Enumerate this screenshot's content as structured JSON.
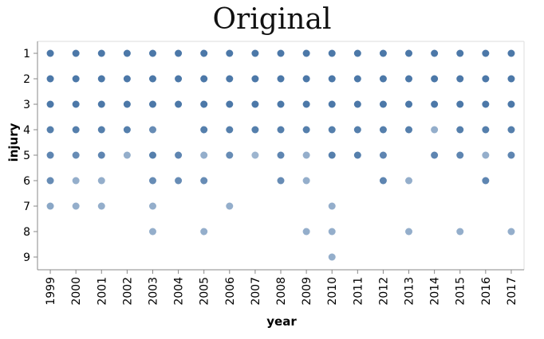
{
  "title": "Original",
  "chart_data": {
    "type": "scatter",
    "xlabel": "year",
    "ylabel": "injury",
    "x": [
      1999,
      2000,
      2001,
      2002,
      2003,
      2004,
      2005,
      2006,
      2007,
      2008,
      2009,
      2010,
      2011,
      2012,
      2013,
      2014,
      2015,
      2016,
      2017
    ],
    "y_ticks": [
      1,
      2,
      3,
      4,
      5,
      6,
      7,
      8,
      9
    ],
    "grid": false,
    "point_color": "#4c78a8",
    "points": [
      {
        "x": 1999,
        "y": 1,
        "opacity": 1
      },
      {
        "x": 1999,
        "y": 2,
        "opacity": 1
      },
      {
        "x": 1999,
        "y": 3,
        "opacity": 1
      },
      {
        "x": 1999,
        "y": 4,
        "opacity": 0.95
      },
      {
        "x": 1999,
        "y": 5,
        "opacity": 0.9
      },
      {
        "x": 1999,
        "y": 6,
        "opacity": 0.85
      },
      {
        "x": 1999,
        "y": 7,
        "opacity": 0.65
      },
      {
        "x": 2000,
        "y": 1,
        "opacity": 1
      },
      {
        "x": 2000,
        "y": 2,
        "opacity": 1
      },
      {
        "x": 2000,
        "y": 3,
        "opacity": 1
      },
      {
        "x": 2000,
        "y": 4,
        "opacity": 0.95
      },
      {
        "x": 2000,
        "y": 5,
        "opacity": 0.85
      },
      {
        "x": 2000,
        "y": 6,
        "opacity": 0.6
      },
      {
        "x": 2000,
        "y": 7,
        "opacity": 0.6
      },
      {
        "x": 2001,
        "y": 1,
        "opacity": 1
      },
      {
        "x": 2001,
        "y": 2,
        "opacity": 1
      },
      {
        "x": 2001,
        "y": 3,
        "opacity": 1
      },
      {
        "x": 2001,
        "y": 4,
        "opacity": 0.95
      },
      {
        "x": 2001,
        "y": 5,
        "opacity": 0.9
      },
      {
        "x": 2001,
        "y": 6,
        "opacity": 0.6
      },
      {
        "x": 2001,
        "y": 7,
        "opacity": 0.6
      },
      {
        "x": 2002,
        "y": 1,
        "opacity": 1
      },
      {
        "x": 2002,
        "y": 2,
        "opacity": 1
      },
      {
        "x": 2002,
        "y": 3,
        "opacity": 1
      },
      {
        "x": 2002,
        "y": 4,
        "opacity": 0.95
      },
      {
        "x": 2002,
        "y": 5,
        "opacity": 0.6
      },
      {
        "x": 2003,
        "y": 1,
        "opacity": 1
      },
      {
        "x": 2003,
        "y": 2,
        "opacity": 1
      },
      {
        "x": 2003,
        "y": 3,
        "opacity": 1
      },
      {
        "x": 2003,
        "y": 4,
        "opacity": 0.85
      },
      {
        "x": 2003,
        "y": 5,
        "opacity": 0.95
      },
      {
        "x": 2003,
        "y": 6,
        "opacity": 0.85
      },
      {
        "x": 2003,
        "y": 7,
        "opacity": 0.6
      },
      {
        "x": 2003,
        "y": 8,
        "opacity": 0.6
      },
      {
        "x": 2004,
        "y": 1,
        "opacity": 1
      },
      {
        "x": 2004,
        "y": 2,
        "opacity": 1
      },
      {
        "x": 2004,
        "y": 3,
        "opacity": 1
      },
      {
        "x": 2004,
        "y": 5,
        "opacity": 0.9
      },
      {
        "x": 2004,
        "y": 6,
        "opacity": 0.85
      },
      {
        "x": 2005,
        "y": 1,
        "opacity": 1
      },
      {
        "x": 2005,
        "y": 2,
        "opacity": 1
      },
      {
        "x": 2005,
        "y": 3,
        "opacity": 1
      },
      {
        "x": 2005,
        "y": 4,
        "opacity": 0.95
      },
      {
        "x": 2005,
        "y": 5,
        "opacity": 0.6
      },
      {
        "x": 2005,
        "y": 6,
        "opacity": 0.85
      },
      {
        "x": 2005,
        "y": 8,
        "opacity": 0.6
      },
      {
        "x": 2006,
        "y": 1,
        "opacity": 1
      },
      {
        "x": 2006,
        "y": 2,
        "opacity": 1
      },
      {
        "x": 2006,
        "y": 3,
        "opacity": 1
      },
      {
        "x": 2006,
        "y": 4,
        "opacity": 0.95
      },
      {
        "x": 2006,
        "y": 5,
        "opacity": 0.85
      },
      {
        "x": 2006,
        "y": 7,
        "opacity": 0.6
      },
      {
        "x": 2007,
        "y": 1,
        "opacity": 1
      },
      {
        "x": 2007,
        "y": 2,
        "opacity": 1
      },
      {
        "x": 2007,
        "y": 3,
        "opacity": 1
      },
      {
        "x": 2007,
        "y": 4,
        "opacity": 0.95
      },
      {
        "x": 2007,
        "y": 5,
        "opacity": 0.55
      },
      {
        "x": 2008,
        "y": 1,
        "opacity": 1
      },
      {
        "x": 2008,
        "y": 2,
        "opacity": 1
      },
      {
        "x": 2008,
        "y": 3,
        "opacity": 1
      },
      {
        "x": 2008,
        "y": 4,
        "opacity": 0.95
      },
      {
        "x": 2008,
        "y": 5,
        "opacity": 0.9
      },
      {
        "x": 2008,
        "y": 6,
        "opacity": 0.85
      },
      {
        "x": 2009,
        "y": 1,
        "opacity": 1
      },
      {
        "x": 2009,
        "y": 2,
        "opacity": 1
      },
      {
        "x": 2009,
        "y": 3,
        "opacity": 1
      },
      {
        "x": 2009,
        "y": 4,
        "opacity": 0.95
      },
      {
        "x": 2009,
        "y": 5,
        "opacity": 0.6
      },
      {
        "x": 2009,
        "y": 6,
        "opacity": 0.6
      },
      {
        "x": 2009,
        "y": 8,
        "opacity": 0.6
      },
      {
        "x": 2010,
        "y": 1,
        "opacity": 1
      },
      {
        "x": 2010,
        "y": 2,
        "opacity": 1
      },
      {
        "x": 2010,
        "y": 3,
        "opacity": 1
      },
      {
        "x": 2010,
        "y": 4,
        "opacity": 0.95
      },
      {
        "x": 2010,
        "y": 5,
        "opacity": 0.95
      },
      {
        "x": 2010,
        "y": 7,
        "opacity": 0.6
      },
      {
        "x": 2010,
        "y": 8,
        "opacity": 0.6
      },
      {
        "x": 2010,
        "y": 9,
        "opacity": 0.6
      },
      {
        "x": 2011,
        "y": 1,
        "opacity": 1
      },
      {
        "x": 2011,
        "y": 2,
        "opacity": 1
      },
      {
        "x": 2011,
        "y": 3,
        "opacity": 1
      },
      {
        "x": 2011,
        "y": 4,
        "opacity": 0.95
      },
      {
        "x": 2011,
        "y": 5,
        "opacity": 0.95
      },
      {
        "x": 2012,
        "y": 1,
        "opacity": 1
      },
      {
        "x": 2012,
        "y": 2,
        "opacity": 1
      },
      {
        "x": 2012,
        "y": 3,
        "opacity": 1
      },
      {
        "x": 2012,
        "y": 4,
        "opacity": 0.95
      },
      {
        "x": 2012,
        "y": 5,
        "opacity": 0.9
      },
      {
        "x": 2012,
        "y": 6,
        "opacity": 0.9
      },
      {
        "x": 2013,
        "y": 1,
        "opacity": 1
      },
      {
        "x": 2013,
        "y": 2,
        "opacity": 1
      },
      {
        "x": 2013,
        "y": 3,
        "opacity": 1
      },
      {
        "x": 2013,
        "y": 4,
        "opacity": 0.95
      },
      {
        "x": 2013,
        "y": 6,
        "opacity": 0.6
      },
      {
        "x": 2013,
        "y": 8,
        "opacity": 0.6
      },
      {
        "x": 2014,
        "y": 1,
        "opacity": 1
      },
      {
        "x": 2014,
        "y": 2,
        "opacity": 1
      },
      {
        "x": 2014,
        "y": 3,
        "opacity": 1
      },
      {
        "x": 2014,
        "y": 4,
        "opacity": 0.6
      },
      {
        "x": 2014,
        "y": 5,
        "opacity": 0.9
      },
      {
        "x": 2015,
        "y": 1,
        "opacity": 1
      },
      {
        "x": 2015,
        "y": 2,
        "opacity": 1
      },
      {
        "x": 2015,
        "y": 3,
        "opacity": 1
      },
      {
        "x": 2015,
        "y": 4,
        "opacity": 0.95
      },
      {
        "x": 2015,
        "y": 5,
        "opacity": 0.9
      },
      {
        "x": 2015,
        "y": 8,
        "opacity": 0.6
      },
      {
        "x": 2016,
        "y": 1,
        "opacity": 1
      },
      {
        "x": 2016,
        "y": 2,
        "opacity": 1
      },
      {
        "x": 2016,
        "y": 3,
        "opacity": 1
      },
      {
        "x": 2016,
        "y": 4,
        "opacity": 0.95
      },
      {
        "x": 2016,
        "y": 5,
        "opacity": 0.6
      },
      {
        "x": 2016,
        "y": 6,
        "opacity": 0.9
      },
      {
        "x": 2017,
        "y": 1,
        "opacity": 1
      },
      {
        "x": 2017,
        "y": 2,
        "opacity": 1
      },
      {
        "x": 2017,
        "y": 3,
        "opacity": 1
      },
      {
        "x": 2017,
        "y": 4,
        "opacity": 0.95
      },
      {
        "x": 2017,
        "y": 5,
        "opacity": 0.9
      },
      {
        "x": 2017,
        "y": 8,
        "opacity": 0.6
      }
    ]
  }
}
